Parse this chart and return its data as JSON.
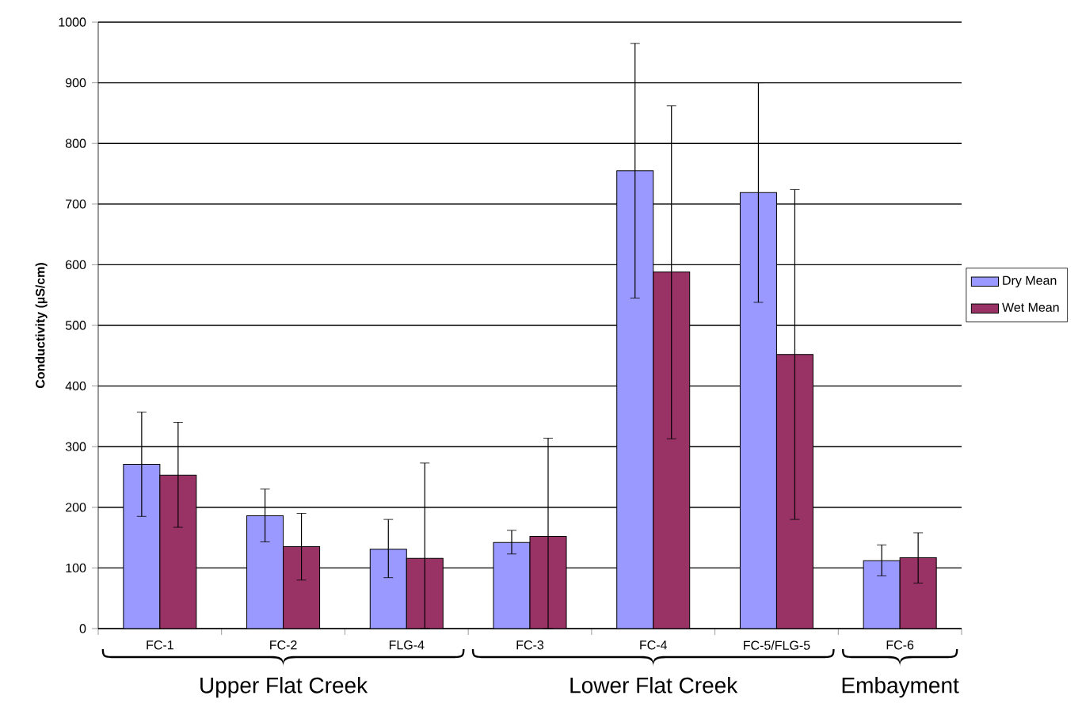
{
  "chart_data": {
    "type": "bar",
    "ylabel": "Conductivity (µS/cm)",
    "categories": [
      "FC-1",
      "FC-2",
      "FLG-4",
      "FC-3",
      "FC-4",
      "FC-5/FLG-5",
      "FC-6"
    ],
    "series": [
      {
        "name": "Dry Mean",
        "color": "#9999ff",
        "values": [
          271,
          186,
          131,
          142,
          755,
          719,
          112
        ],
        "errors": [
          [
            185,
            357
          ],
          [
            143,
            230
          ],
          [
            84,
            180
          ],
          [
            123,
            162
          ],
          [
            545,
            965
          ],
          [
            538,
            900
          ],
          [
            87,
            138
          ]
        ]
      },
      {
        "name": "Wet Mean",
        "color": "#993366",
        "values": [
          253,
          135,
          116,
          152,
          588,
          452,
          117
        ],
        "errors": [
          [
            167,
            340
          ],
          [
            80,
            190
          ],
          [
            0,
            273
          ],
          [
            0,
            314
          ],
          [
            313,
            862
          ],
          [
            180,
            724
          ],
          [
            75,
            158
          ]
        ]
      }
    ],
    "ylim": [
      0,
      1000
    ],
    "yticks": [
      0,
      100,
      200,
      300,
      400,
      500,
      600,
      700,
      800,
      900,
      1000
    ],
    "grid": "y",
    "legend": "right",
    "annotations": [
      "Upper Flat Creek",
      "Lower Flat Creek",
      "Embayment"
    ]
  }
}
